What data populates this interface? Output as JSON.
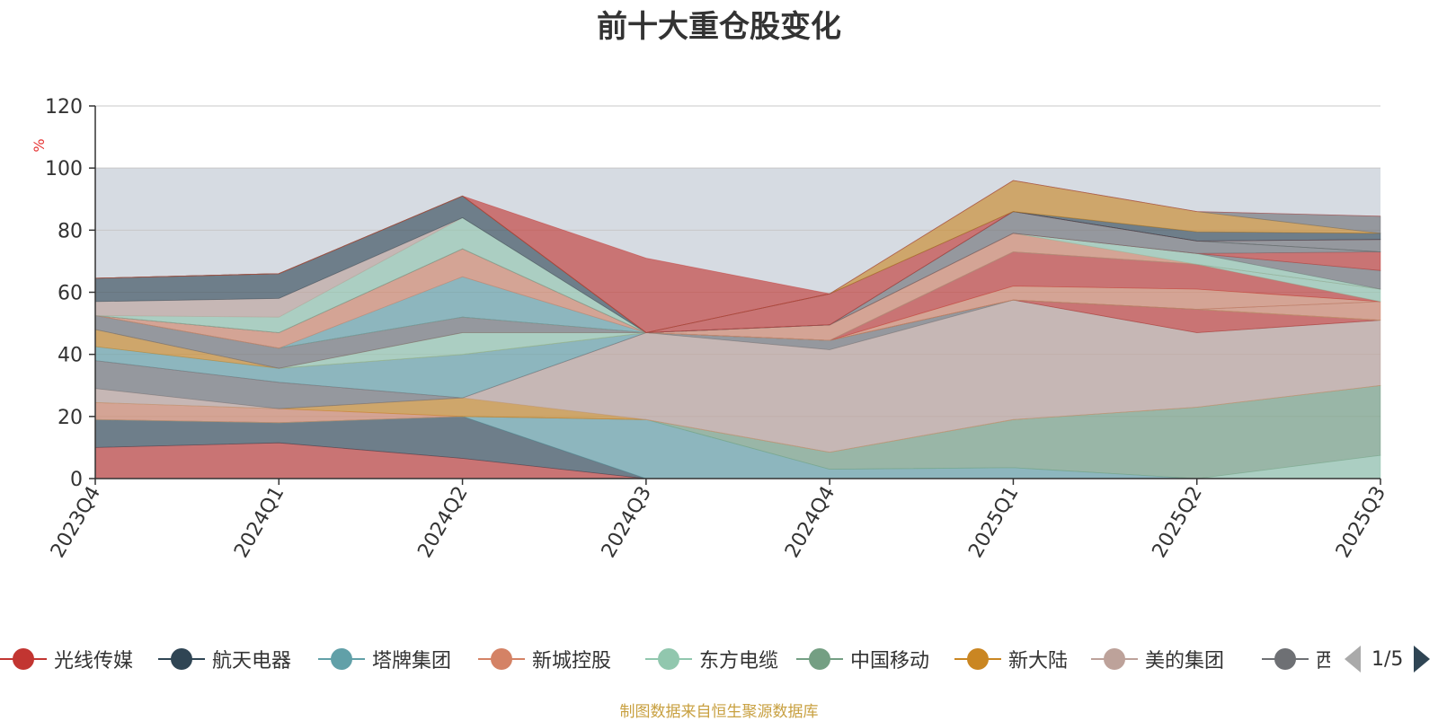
{
  "chart_data": {
    "type": "area",
    "stacked": true,
    "title": "前十大重仓股变化",
    "ylabel": "%",
    "ylim": [
      0,
      120
    ],
    "yticks": [
      "0",
      "20",
      "40",
      "60",
      "80",
      "100",
      "120"
    ],
    "categories": [
      "2023Q4",
      "2024Q1",
      "2024Q2",
      "2024Q3",
      "2024Q4",
      "2025Q1",
      "2025Q2",
      "2025Q3"
    ],
    "grid": true,
    "legend_position": "bottom",
    "series": [
      {
        "name": "光线传媒",
        "color": "#c23531",
        "values": [
          10,
          11.5,
          6.5,
          0,
          0,
          0,
          0,
          0
        ]
      },
      {
        "name": "航天电器",
        "color": "#2f4554",
        "values": [
          9,
          6.5,
          13.5,
          0,
          0,
          0,
          0,
          0
        ]
      },
      {
        "name": "塔牌集团",
        "color": "#61a0a8",
        "values": [
          0,
          0,
          0,
          19,
          3,
          3.5,
          0,
          0
        ]
      },
      {
        "name": "东方电缆",
        "color": "#91c7ae",
        "values": [
          0,
          0,
          0,
          0,
          0,
          0,
          0,
          7.5
        ]
      },
      {
        "name": "中国移动",
        "color": "#749f83",
        "values": [
          0,
          0,
          0,
          0,
          5.5,
          15.5,
          23,
          22.5
        ]
      },
      {
        "name": "新城控股",
        "color": "#d48265",
        "values": [
          5.5,
          4.5,
          0,
          0,
          0,
          0,
          0,
          0
        ]
      },
      {
        "name": "新大陆",
        "color": "#ca8622",
        "values": [
          0,
          0,
          6,
          0,
          0,
          0,
          0,
          0
        ]
      },
      {
        "name": "美的集团",
        "color": "#bda29a",
        "values": [
          4.5,
          0,
          0,
          28,
          33,
          38.5,
          24,
          21
        ]
      },
      {
        "name": "西部矿业",
        "color": "#6e7074",
        "values": [
          9,
          8.5,
          0,
          0,
          3,
          0,
          0,
          0
        ]
      },
      {
        "name": "光线传媒",
        "color": "#c23531",
        "values": [
          0,
          0,
          0,
          0,
          0,
          0,
          7.5,
          0
        ]
      },
      {
        "name": "塔牌集团",
        "color": "#61a0a8",
        "values": [
          4.5,
          4.5,
          14,
          0,
          0,
          0,
          0,
          0
        ]
      },
      {
        "name": "新大陆",
        "color": "#ca8622",
        "values": [
          5.5,
          0,
          0,
          0,
          0,
          0,
          0,
          0
        ]
      },
      {
        "name": "东方电缆",
        "color": "#91c7ae",
        "values": [
          0,
          0,
          7,
          0,
          0,
          0,
          0,
          0
        ]
      },
      {
        "name": "新城控股",
        "color": "#d48265",
        "values": [
          0,
          0,
          0,
          0,
          0,
          0,
          0,
          6
        ]
      },
      {
        "name": "西部矿业",
        "color": "#6e7074",
        "values": [
          4.5,
          6.5,
          5,
          0,
          0,
          0,
          0,
          0
        ]
      },
      {
        "name": "新城控股",
        "color": "#d48265",
        "values": [
          0,
          0,
          0,
          0,
          0,
          4.5,
          6.5,
          0
        ]
      },
      {
        "name": "光线传媒",
        "color": "#c23531",
        "values": [
          0,
          0,
          0,
          0,
          0,
          11,
          8,
          0
        ]
      },
      {
        "name": "东方电缆",
        "color": "#91c7ae",
        "values": [
          0,
          0,
          0,
          0,
          0,
          0,
          0,
          4
        ]
      },
      {
        "name": "塔牌集团",
        "color": "#61a0a8",
        "values": [
          0,
          0,
          13,
          0,
          0,
          0,
          0,
          0
        ]
      },
      {
        "name": "新城控股",
        "color": "#d48265",
        "values": [
          0,
          5,
          9,
          0,
          5,
          6,
          0,
          0
        ]
      },
      {
        "name": "东方电缆",
        "color": "#91c7ae",
        "values": [
          0,
          0,
          0,
          0,
          0,
          0,
          3.5,
          0
        ]
      },
      {
        "name": "西部矿业",
        "color": "#6e7074",
        "values": [
          0,
          0,
          0,
          0,
          0,
          0,
          0,
          6
        ]
      },
      {
        "name": "光线传媒",
        "color": "#c23531",
        "values": [
          0,
          0,
          0,
          0,
          0,
          0,
          0,
          6
        ]
      },
      {
        "name": "西部矿业",
        "color": "#6e7074",
        "values": [
          0,
          0,
          0,
          0,
          0,
          7,
          4,
          0
        ]
      },
      {
        "name": "东方电缆",
        "color": "#91c7ae",
        "values": [
          0,
          5,
          10,
          0,
          0,
          0,
          0,
          0
        ]
      },
      {
        "name": "美的集团",
        "color": "#bda29a",
        "values": [
          4.5,
          6,
          0,
          0,
          0,
          0,
          0,
          0
        ]
      },
      {
        "name": "航天电器",
        "color": "#2f4554",
        "values": [
          7.5,
          8,
          7,
          0,
          0,
          0,
          0,
          0
        ]
      },
      {
        "name": "西部矿业",
        "color": "#6e7074",
        "values": [
          0,
          0,
          0,
          0,
          0,
          0,
          0,
          4
        ]
      },
      {
        "name": "光线传媒",
        "color": "#c23531",
        "values": [
          0,
          0,
          0,
          0,
          10,
          0,
          0,
          0
        ]
      },
      {
        "name": "航天电器",
        "color": "#2f4554",
        "values": [
          0,
          0,
          0,
          0,
          0,
          0,
          3,
          2
        ]
      },
      {
        "name": "新大陆",
        "color": "#ca8622",
        "values": [
          0,
          0,
          0,
          0,
          0,
          10,
          6.5,
          0
        ]
      },
      {
        "name": "西部矿业",
        "color": "#6e7074",
        "values": [
          0,
          0,
          0,
          0,
          0,
          0,
          0,
          5.5
        ]
      },
      {
        "name": "光线传媒",
        "color": "#c23531",
        "values": [
          0,
          0,
          0,
          24,
          0,
          0,
          0,
          0
        ]
      },
      {
        "name": "美的集团",
        "color": "#bda29a",
        "values": [
          0,
          0,
          0,
          0,
          0,
          0,
          0,
          0
        ]
      }
    ],
    "background_band": [
      0,
      100
    ]
  },
  "legend": {
    "items": [
      {
        "label": "光线传媒",
        "color": "#c23531"
      },
      {
        "label": "航天电器",
        "color": "#2f4554"
      },
      {
        "label": "塔牌集团",
        "color": "#61a0a8"
      },
      {
        "label": "新城控股",
        "color": "#d48265"
      },
      {
        "label": "东方电缆",
        "color": "#91c7ae"
      },
      {
        "label": "中国移动",
        "color": "#749f83"
      },
      {
        "label": "新大陆",
        "color": "#ca8622"
      },
      {
        "label": "美的集团",
        "color": "#bda29a"
      },
      {
        "label": "西部矿业",
        "color": "#6e7074"
      }
    ],
    "page_text": "1/5"
  },
  "source_note": "制图数据来自恒生聚源数据库"
}
